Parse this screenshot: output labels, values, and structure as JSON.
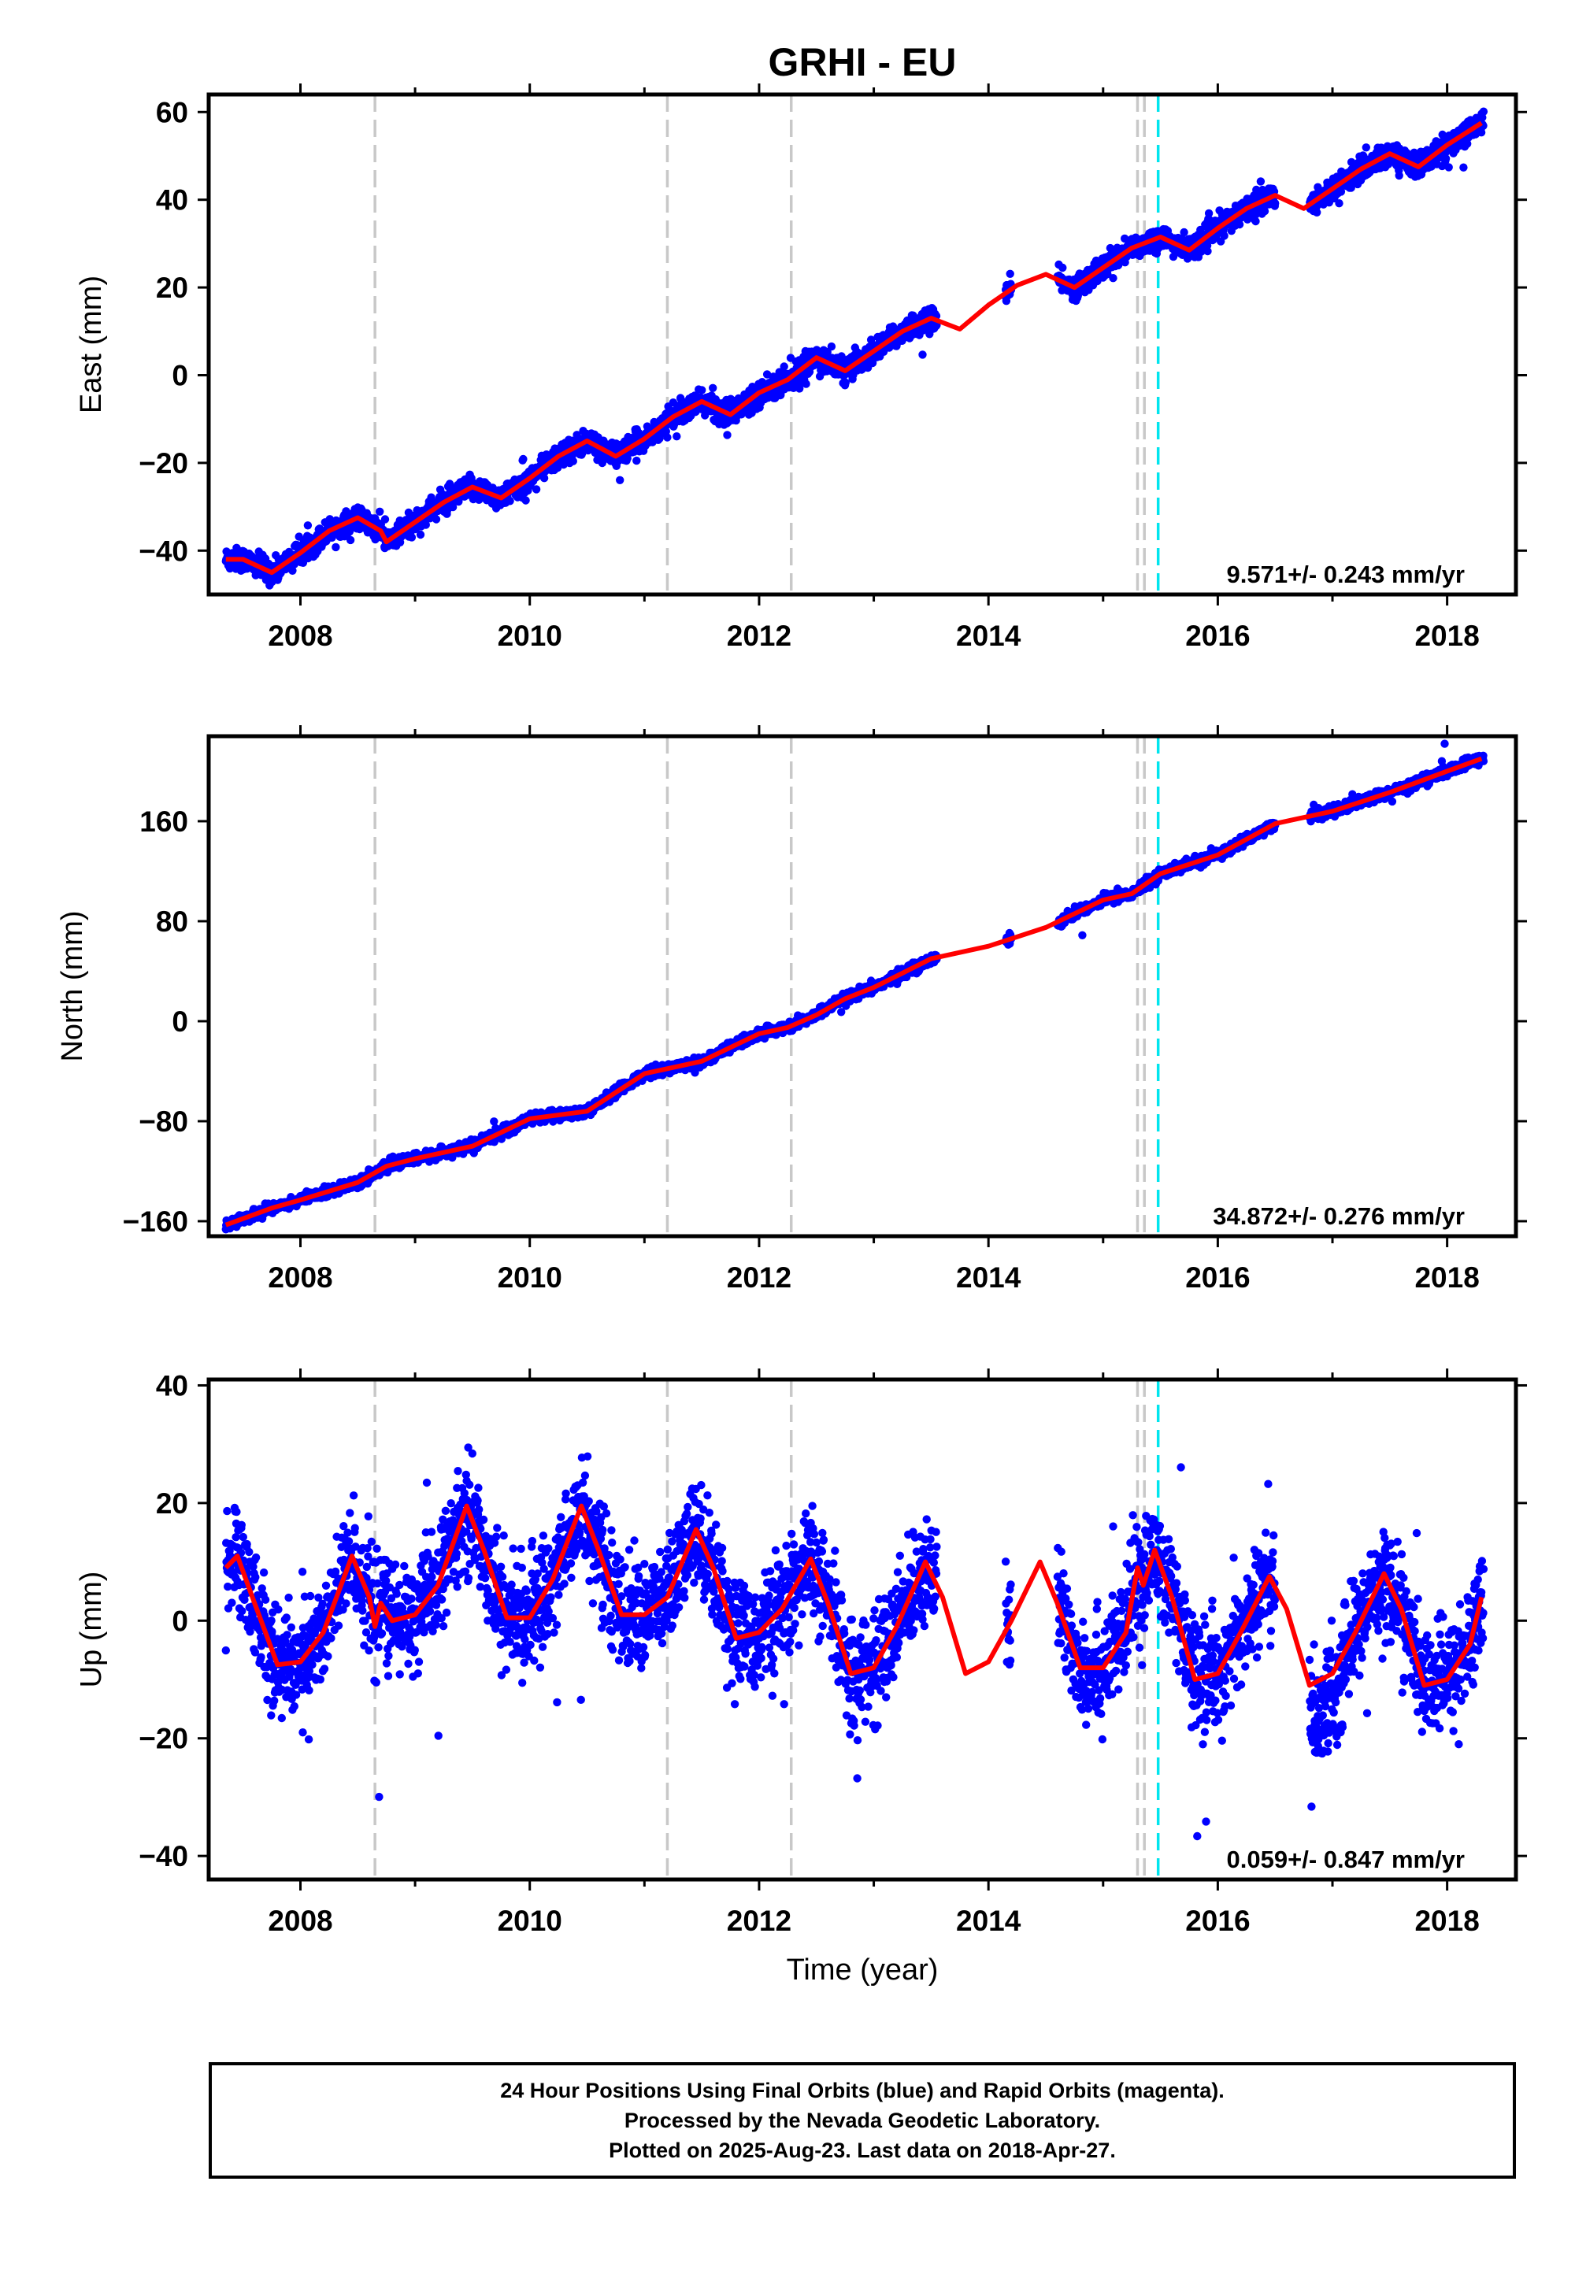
{
  "figure": {
    "title": "GRHI - EU",
    "xlabel": "Time (year)"
  },
  "colors": {
    "data": "#0000ff",
    "model": "#ff0000",
    "equipment_change": "#c8c8c8",
    "earthquake": "#00e5ee",
    "frame": "#000000"
  },
  "caption": {
    "line1": "24 Hour Positions Using Final Orbits (blue) and Rapid Orbits (magenta).",
    "line2": "Processed by the Nevada Geodetic Laboratory.",
    "line3": "Plotted on 2025-Aug-23. Last data on 2018-Apr-27."
  },
  "chart_data": [
    {
      "type": "scatter",
      "panel": "east",
      "ylabel": "East (mm)",
      "xlim": [
        2007.2,
        2018.6
      ],
      "ylim": [
        -50,
        64
      ],
      "xticks": [
        2008,
        2010,
        2012,
        2014,
        2016,
        2018
      ],
      "xtick_labels": [
        "2008",
        "2010",
        "2012",
        "2014",
        "2016",
        "2018"
      ],
      "yticks": [
        -40,
        -20,
        0,
        20,
        40,
        60
      ],
      "ytick_labels": [
        "−40",
        "−20",
        "0",
        "20",
        "40",
        "60"
      ],
      "rate_label": "9.571+/- 0.243 mm/yr",
      "rate": 9.571,
      "annual_amplitude": 2.5,
      "annual_phase": 0.5,
      "scatter_sd": 1.3,
      "gaps": [
        [
          2013.55,
          2014.15
        ],
        [
          2014.2,
          2014.6
        ],
        [
          2016.5,
          2016.8
        ]
      ],
      "model_points": [
        [
          2007.35,
          -42.0
        ],
        [
          2007.5,
          -42.0
        ],
        [
          2007.75,
          -45.0
        ],
        [
          2008.0,
          -40.5
        ],
        [
          2008.25,
          -35.5
        ],
        [
          2008.5,
          -32.5
        ],
        [
          2008.7,
          -35.5
        ],
        [
          2008.75,
          -38.0
        ],
        [
          2009.0,
          -33.5
        ],
        [
          2009.25,
          -29.0
        ],
        [
          2009.5,
          -25.5
        ],
        [
          2009.75,
          -28.0
        ],
        [
          2010.0,
          -23.5
        ],
        [
          2010.25,
          -18.5
        ],
        [
          2010.5,
          -15.0
        ],
        [
          2010.75,
          -18.5
        ],
        [
          2011.0,
          -14.5
        ],
        [
          2011.25,
          -9.5
        ],
        [
          2011.5,
          -6.0
        ],
        [
          2011.75,
          -9.0
        ],
        [
          2012.0,
          -4.0
        ],
        [
          2012.25,
          -1.0
        ],
        [
          2012.5,
          4.0
        ],
        [
          2012.75,
          1.0
        ],
        [
          2013.0,
          5.5
        ],
        [
          2013.25,
          10.0
        ],
        [
          2013.5,
          13.0
        ],
        [
          2013.75,
          10.5
        ],
        [
          2014.0,
          16.0
        ],
        [
          2014.25,
          20.5
        ],
        [
          2014.5,
          23.0
        ],
        [
          2014.75,
          20.0
        ],
        [
          2015.0,
          24.5
        ],
        [
          2015.25,
          29.0
        ],
        [
          2015.5,
          31.5
        ],
        [
          2015.75,
          28.5
        ],
        [
          2016.0,
          33.5
        ],
        [
          2016.25,
          38.0
        ],
        [
          2016.5,
          41.0
        ],
        [
          2016.75,
          38.0
        ],
        [
          2017.0,
          42.5
        ],
        [
          2017.25,
          47.0
        ],
        [
          2017.5,
          50.5
        ],
        [
          2017.75,
          47.5
        ],
        [
          2018.0,
          52.5
        ],
        [
          2018.3,
          57.5
        ]
      ]
    },
    {
      "type": "scatter",
      "panel": "north",
      "ylabel": "North (mm)",
      "xlim": [
        2007.2,
        2018.6
      ],
      "ylim": [
        -172,
        228
      ],
      "xticks": [
        2008,
        2010,
        2012,
        2014,
        2016,
        2018
      ],
      "xtick_labels": [
        "2008",
        "2010",
        "2012",
        "2014",
        "2016",
        "2018"
      ],
      "yticks": [
        -160,
        -80,
        0,
        80,
        160
      ],
      "ytick_labels": [
        "−160",
        "−80",
        "0",
        "80",
        "160"
      ],
      "rate_label": "34.872+/- 0.276 mm/yr",
      "rate": 34.872,
      "annual_amplitude": 3.0,
      "annual_phase": 0.5,
      "scatter_sd": 2.0,
      "gaps": [
        [
          2013.55,
          2014.15
        ],
        [
          2014.2,
          2014.6
        ],
        [
          2016.5,
          2016.8
        ]
      ],
      "model_points": [
        [
          2007.35,
          -163.0
        ],
        [
          2007.75,
          -149.5
        ],
        [
          2008.0,
          -143.0
        ],
        [
          2008.5,
          -129.0
        ],
        [
          2008.75,
          -116.0
        ],
        [
          2009.0,
          -110.0
        ],
        [
          2009.5,
          -100.0
        ],
        [
          2010.0,
          -78.0
        ],
        [
          2010.5,
          -72.0
        ],
        [
          2011.0,
          -42.0
        ],
        [
          2011.25,
          -37.0
        ],
        [
          2011.5,
          -32.0
        ],
        [
          2012.0,
          -10.0
        ],
        [
          2012.25,
          -5.0
        ],
        [
          2012.5,
          5.0
        ],
        [
          2012.75,
          18.0
        ],
        [
          2013.0,
          27.0
        ],
        [
          2013.5,
          50.0
        ],
        [
          2014.0,
          60.0
        ],
        [
          2014.5,
          75.0
        ],
        [
          2015.0,
          97.0
        ],
        [
          2015.25,
          102.0
        ],
        [
          2015.5,
          118.0
        ],
        [
          2016.0,
          133.0
        ],
        [
          2016.5,
          158.0
        ],
        [
          2017.0,
          168.0
        ],
        [
          2017.5,
          183.0
        ],
        [
          2018.0,
          200.0
        ],
        [
          2018.3,
          210.0
        ]
      ]
    },
    {
      "type": "scatter",
      "panel": "up",
      "ylabel": "Up (mm)",
      "xlim": [
        2007.2,
        2018.6
      ],
      "ylim": [
        -44,
        41
      ],
      "xticks": [
        2008,
        2010,
        2012,
        2014,
        2016,
        2018
      ],
      "xtick_labels": [
        "2008",
        "2010",
        "2012",
        "2014",
        "2016",
        "2018"
      ],
      "yticks": [
        -40,
        -20,
        0,
        20,
        40
      ],
      "ytick_labels": [
        "−40",
        "−20",
        "0",
        "20",
        "40"
      ],
      "rate_label": "0.059+/- 0.847 mm/yr",
      "rate": 0.059,
      "annual_amplitude": 10.0,
      "annual_phase": 0.45,
      "scatter_sd": 4.5,
      "gaps": [
        [
          2013.55,
          2014.15
        ],
        [
          2014.2,
          2014.6
        ],
        [
          2016.5,
          2016.8
        ]
      ],
      "model_points": [
        [
          2007.35,
          9.0
        ],
        [
          2007.45,
          11.0
        ],
        [
          2007.6,
          3.0
        ],
        [
          2007.8,
          -7.5
        ],
        [
          2008.0,
          -7.0
        ],
        [
          2008.2,
          -2.0
        ],
        [
          2008.45,
          11.0
        ],
        [
          2008.6,
          4.0
        ],
        [
          2008.65,
          -1.0
        ],
        [
          2008.7,
          3.0
        ],
        [
          2008.8,
          0.0
        ],
        [
          2009.0,
          1.0
        ],
        [
          2009.2,
          6.0
        ],
        [
          2009.45,
          19.5
        ],
        [
          2009.6,
          12.0
        ],
        [
          2009.8,
          0.5
        ],
        [
          2010.0,
          0.5
        ],
        [
          2010.2,
          7.0
        ],
        [
          2010.45,
          19.5
        ],
        [
          2010.6,
          12.0
        ],
        [
          2010.8,
          1.0
        ],
        [
          2011.0,
          1.0
        ],
        [
          2011.2,
          4.0
        ],
        [
          2011.45,
          15.5
        ],
        [
          2011.6,
          9.0
        ],
        [
          2011.8,
          -3.0
        ],
        [
          2012.0,
          -2.0
        ],
        [
          2012.2,
          2.0
        ],
        [
          2012.45,
          10.5
        ],
        [
          2012.6,
          3.0
        ],
        [
          2012.8,
          -9.0
        ],
        [
          2013.0,
          -8.0
        ],
        [
          2013.2,
          -1.0
        ],
        [
          2013.45,
          10.0
        ],
        [
          2013.6,
          4.0
        ],
        [
          2013.8,
          -9.0
        ],
        [
          2014.0,
          -7.0
        ],
        [
          2014.2,
          0.0
        ],
        [
          2014.45,
          10.0
        ],
        [
          2014.6,
          3.0
        ],
        [
          2014.8,
          -8.0
        ],
        [
          2015.0,
          -8.0
        ],
        [
          2015.2,
          -2.0
        ],
        [
          2015.3,
          9.0
        ],
        [
          2015.35,
          6.0
        ],
        [
          2015.45,
          12.0
        ],
        [
          2015.6,
          4.0
        ],
        [
          2015.8,
          -10.0
        ],
        [
          2016.0,
          -9.0
        ],
        [
          2016.2,
          -2.0
        ],
        [
          2016.45,
          7.5
        ],
        [
          2016.6,
          2.0
        ],
        [
          2016.8,
          -11.0
        ],
        [
          2017.0,
          -9.0
        ],
        [
          2017.2,
          -2.0
        ],
        [
          2017.45,
          8.0
        ],
        [
          2017.6,
          2.0
        ],
        [
          2017.8,
          -11.0
        ],
        [
          2018.0,
          -10.0
        ],
        [
          2018.2,
          -4.0
        ],
        [
          2018.3,
          4.0
        ]
      ]
    }
  ],
  "events": {
    "equipment_changes": [
      2008.65,
      2011.2,
      2012.28,
      2015.3,
      2015.36
    ],
    "earthquakes": [
      2015.48
    ]
  },
  "data_span": [
    2007.35,
    2018.32
  ]
}
